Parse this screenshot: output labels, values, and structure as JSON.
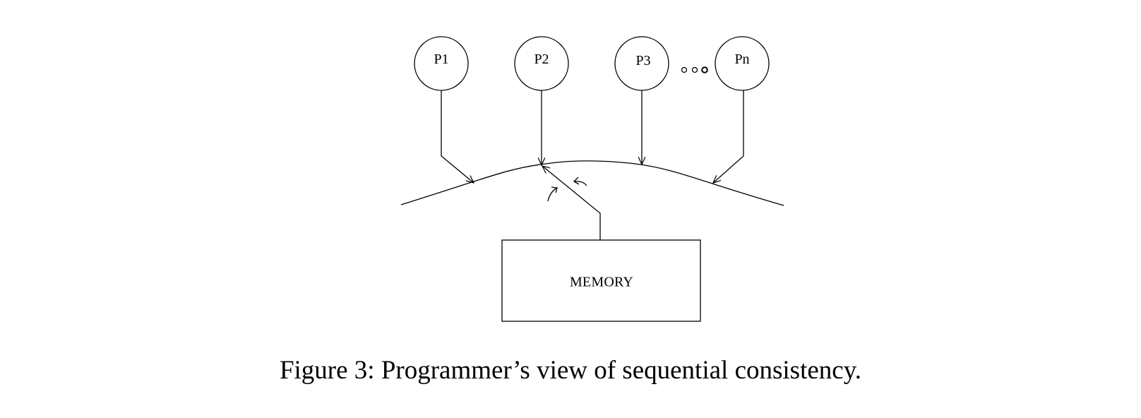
{
  "processors": [
    {
      "label": "P1"
    },
    {
      "label": "P2"
    },
    {
      "label": "P3"
    },
    {
      "label": "Pn"
    }
  ],
  "memory": {
    "label": "MEMORY"
  },
  "caption": "Figure 3: Programmer’s view of sequential consistency."
}
